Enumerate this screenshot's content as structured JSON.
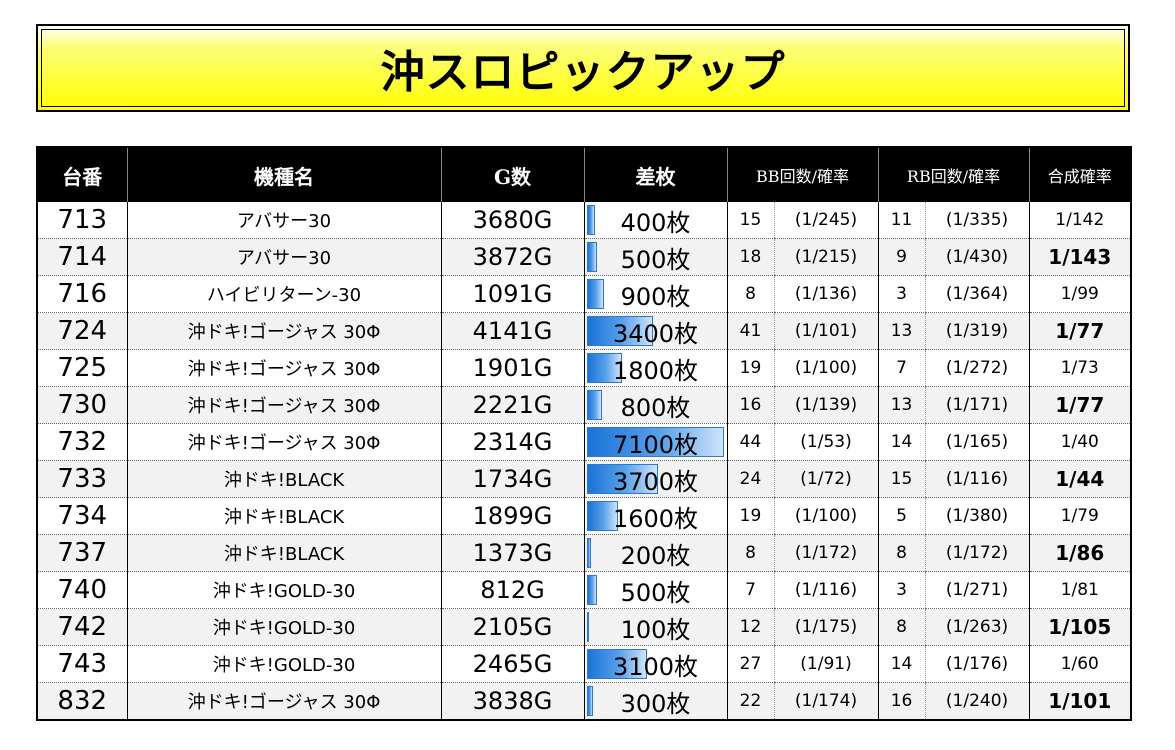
{
  "title": "沖スロピックアップ",
  "headers": {
    "no": "台番",
    "model": "機種名",
    "games": "G数",
    "diff": "差枚",
    "bb": "BB回数/確率",
    "rb": "RB回数/確率",
    "combined": "合成確率"
  },
  "max_diff": 7100,
  "rows": [
    {
      "no": "713",
      "model": "アバサー30",
      "games": "3680G",
      "diff": 400,
      "diff_label": "400枚",
      "bb_count": "15",
      "bb_prob": "(1/245)",
      "rb_count": "11",
      "rb_prob": "(1/335)",
      "combined": "1/142",
      "combined_bold": false
    },
    {
      "no": "714",
      "model": "アバサー30",
      "games": "3872G",
      "diff": 500,
      "diff_label": "500枚",
      "bb_count": "18",
      "bb_prob": "(1/215)",
      "rb_count": "9",
      "rb_prob": "(1/430)",
      "combined": "1/143",
      "combined_bold": true
    },
    {
      "no": "716",
      "model": "ハイビリターン-30",
      "games": "1091G",
      "diff": 900,
      "diff_label": "900枚",
      "bb_count": "8",
      "bb_prob": "(1/136)",
      "rb_count": "3",
      "rb_prob": "(1/364)",
      "combined": "1/99",
      "combined_bold": false
    },
    {
      "no": "724",
      "model": "沖ドキ!ゴージャス 30Φ",
      "games": "4141G",
      "diff": 3400,
      "diff_label": "3400枚",
      "bb_count": "41",
      "bb_prob": "(1/101)",
      "rb_count": "13",
      "rb_prob": "(1/319)",
      "combined": "1/77",
      "combined_bold": true
    },
    {
      "no": "725",
      "model": "沖ドキ!ゴージャス 30Φ",
      "games": "1901G",
      "diff": 1800,
      "diff_label": "1800枚",
      "bb_count": "19",
      "bb_prob": "(1/100)",
      "rb_count": "7",
      "rb_prob": "(1/272)",
      "combined": "1/73",
      "combined_bold": false
    },
    {
      "no": "730",
      "model": "沖ドキ!ゴージャス 30Φ",
      "games": "2221G",
      "diff": 800,
      "diff_label": "800枚",
      "bb_count": "16",
      "bb_prob": "(1/139)",
      "rb_count": "13",
      "rb_prob": "(1/171)",
      "combined": "1/77",
      "combined_bold": true
    },
    {
      "no": "732",
      "model": "沖ドキ!ゴージャス 30Φ",
      "games": "2314G",
      "diff": 7100,
      "diff_label": "7100枚",
      "bb_count": "44",
      "bb_prob": "(1/53)",
      "rb_count": "14",
      "rb_prob": "(1/165)",
      "combined": "1/40",
      "combined_bold": false
    },
    {
      "no": "733",
      "model": "沖ドキ!BLACK",
      "games": "1734G",
      "diff": 3700,
      "diff_label": "3700枚",
      "bb_count": "24",
      "bb_prob": "(1/72)",
      "rb_count": "15",
      "rb_prob": "(1/116)",
      "combined": "1/44",
      "combined_bold": true
    },
    {
      "no": "734",
      "model": "沖ドキ!BLACK",
      "games": "1899G",
      "diff": 1600,
      "diff_label": "1600枚",
      "bb_count": "19",
      "bb_prob": "(1/100)",
      "rb_count": "5",
      "rb_prob": "(1/380)",
      "combined": "1/79",
      "combined_bold": false
    },
    {
      "no": "737",
      "model": "沖ドキ!BLACK",
      "games": "1373G",
      "diff": 200,
      "diff_label": "200枚",
      "bb_count": "8",
      "bb_prob": "(1/172)",
      "rb_count": "8",
      "rb_prob": "(1/172)",
      "combined": "1/86",
      "combined_bold": true
    },
    {
      "no": "740",
      "model": "沖ドキ!GOLD-30",
      "games": "812G",
      "diff": 500,
      "diff_label": "500枚",
      "bb_count": "7",
      "bb_prob": "(1/116)",
      "rb_count": "3",
      "rb_prob": "(1/271)",
      "combined": "1/81",
      "combined_bold": false
    },
    {
      "no": "742",
      "model": "沖ドキ!GOLD-30",
      "games": "2105G",
      "diff": 100,
      "diff_label": "100枚",
      "bb_count": "12",
      "bb_prob": "(1/175)",
      "rb_count": "8",
      "rb_prob": "(1/263)",
      "combined": "1/105",
      "combined_bold": true
    },
    {
      "no": "743",
      "model": "沖ドキ!GOLD-30",
      "games": "2465G",
      "diff": 3100,
      "diff_label": "3100枚",
      "bb_count": "27",
      "bb_prob": "(1/91)",
      "rb_count": "14",
      "rb_prob": "(1/176)",
      "combined": "1/60",
      "combined_bold": false
    },
    {
      "no": "832",
      "model": "沖ドキ!ゴージャス 30Φ",
      "games": "3838G",
      "diff": 300,
      "diff_label": "300枚",
      "bb_count": "22",
      "bb_prob": "(1/174)",
      "rb_count": "16",
      "rb_prob": "(1/240)",
      "combined": "1/101",
      "combined_bold": true
    }
  ]
}
